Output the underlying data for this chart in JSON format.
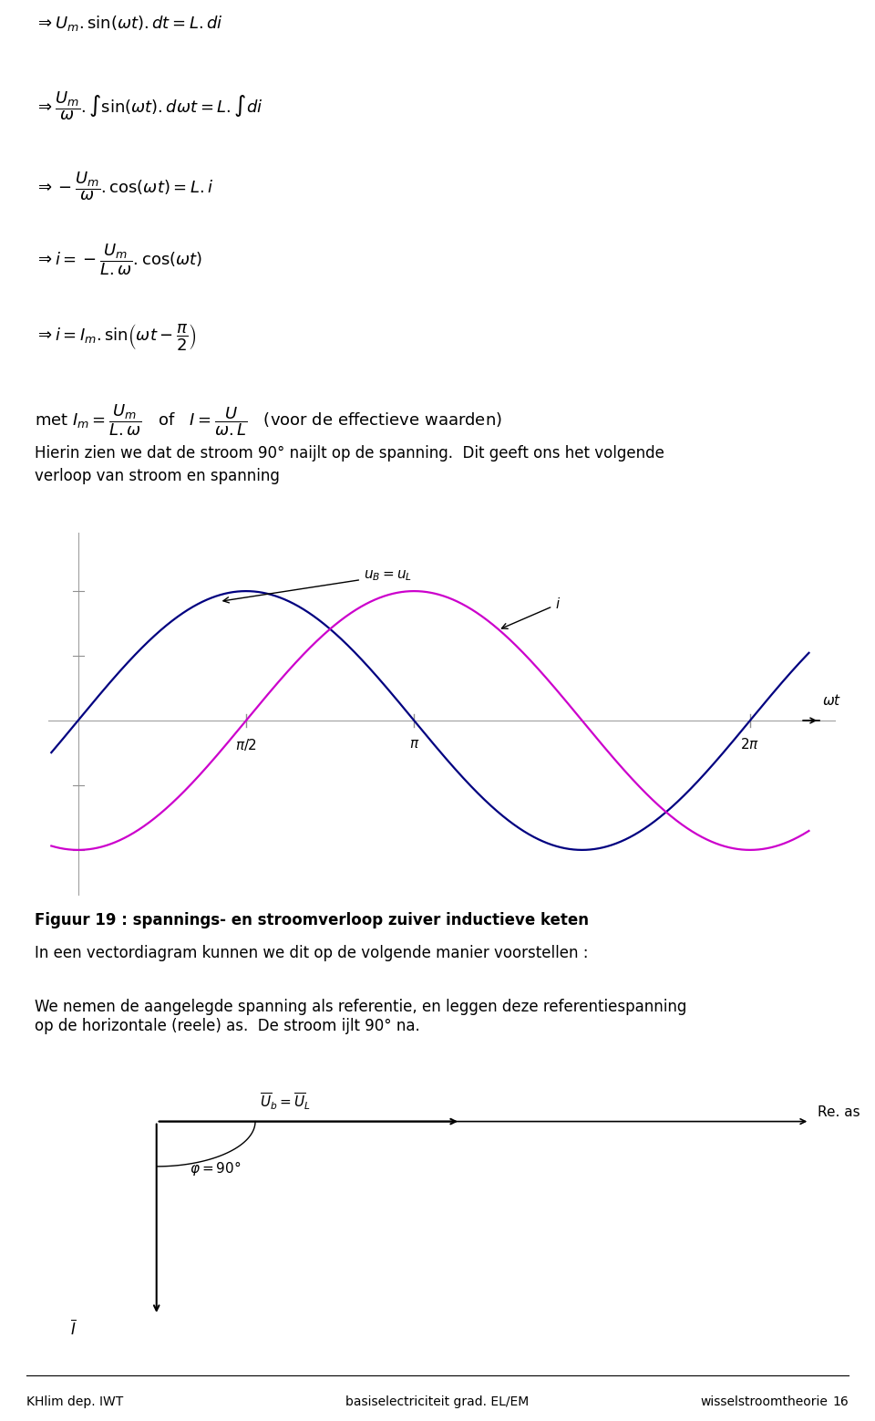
{
  "bg_color": "#ffffff",
  "text_color": "#000000",
  "voltage_color": "#000080",
  "current_color": "#cc00cc",
  "arrow_color": "#000000",
  "tick_color": "#909090",
  "caption": "Figuur 19 : spannings- en stroomverloop zuiver inductieve keten",
  "para1": "In een vectordiagram kunnen we dit op de volgende manier voorstellen :",
  "para2": "We nemen de aangelegde spanning als referentie, en leggen deze referentiespanning op de horizontale (reele) as.  De stroom ijlt 90° na.",
  "footer_left": "KHlim dep. IWT",
  "footer_center": "basiselectriciteit grad. EL/EM",
  "footer_right": "wisselstroomtheorie",
  "footer_page": "16"
}
